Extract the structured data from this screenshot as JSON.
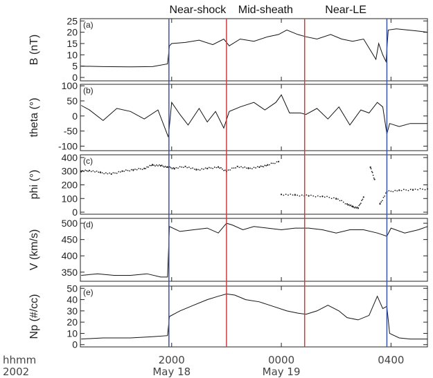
{
  "chart_data": {
    "type": "line",
    "time_axis": {
      "range_hours": [
        16.67,
        29.33
      ],
      "ticks": [
        {
          "t": 20,
          "label": "2000",
          "date": "May 18"
        },
        {
          "t": 24,
          "label": "0000",
          "date": "May 19"
        },
        {
          "t": 28,
          "label": "0400",
          "date": ""
        }
      ],
      "row_labels": [
        "hhmm",
        "2002"
      ]
    },
    "regions": [
      "Near-shock",
      "Mid-sheath",
      "Near-LE"
    ],
    "boundaries": [
      {
        "t": 19.9,
        "color": "#3a54a8"
      },
      {
        "t": 22.0,
        "color": "#d23a3a"
      },
      {
        "t": 24.85,
        "color": "#d23a3a"
      },
      {
        "t": 27.85,
        "color": "#3a54a8"
      }
    ],
    "panels": [
      {
        "tag": "(a)",
        "ylabel": "B (nT)",
        "ylim": [
          -1.5,
          26
        ],
        "yticks": [
          0,
          5,
          10,
          15,
          20,
          25
        ],
        "style": "line",
        "x": [
          16.7,
          17.5,
          18.5,
          19.3,
          19.85,
          19.92,
          20.0,
          20.5,
          21.0,
          21.5,
          21.9,
          22.1,
          22.5,
          23.0,
          23.5,
          23.9,
          24.2,
          24.6,
          24.9,
          25.3,
          25.8,
          26.2,
          26.6,
          27.0,
          27.2,
          27.45,
          27.55,
          27.7,
          27.82,
          27.9,
          28.2,
          28.6,
          29.0,
          29.33
        ],
        "y": [
          5,
          4.8,
          4.7,
          4.8,
          6,
          14,
          15,
          15.5,
          16.5,
          14.5,
          17,
          14,
          17,
          16,
          18,
          19,
          21,
          19,
          18,
          17,
          19,
          17,
          16,
          17,
          13,
          8,
          15,
          10,
          7,
          21,
          21.5,
          21,
          20.5,
          20
        ]
      },
      {
        "tag": "(b)",
        "ylabel": "theta (°)",
        "ylim": [
          -115,
          105
        ],
        "yticks": [
          -100,
          -50,
          0,
          50,
          100
        ],
        "style": "line",
        "x": [
          16.7,
          17.0,
          17.5,
          18.0,
          18.5,
          19.0,
          19.5,
          19.88,
          20.0,
          20.3,
          20.6,
          21.0,
          21.3,
          21.6,
          21.9,
          22.1,
          22.5,
          23.0,
          23.4,
          23.8,
          24.0,
          24.3,
          24.7,
          24.9,
          25.3,
          25.7,
          26.1,
          26.5,
          26.9,
          27.2,
          27.5,
          27.7,
          27.85,
          27.95,
          28.3,
          28.7,
          29.0,
          29.33
        ],
        "y": [
          35,
          20,
          -15,
          25,
          15,
          -10,
          20,
          -70,
          45,
          5,
          -30,
          25,
          -20,
          15,
          -40,
          15,
          30,
          45,
          20,
          45,
          70,
          10,
          10,
          5,
          25,
          -10,
          30,
          -30,
          20,
          10,
          45,
          30,
          -60,
          -25,
          -35,
          -25,
          -25,
          -25
        ]
      },
      {
        "tag": "(c)",
        "ylabel": "phi (°)",
        "ylim": [
          -15,
          420
        ],
        "yticks": [
          0,
          100,
          200,
          300,
          400
        ],
        "style": "dots",
        "x": [
          16.7,
          17.0,
          17.4,
          17.8,
          18.2,
          18.6,
          19.0,
          19.3,
          19.6,
          19.85,
          20.1,
          20.5,
          20.9,
          21.3,
          21.7,
          22.0,
          22.4,
          22.8,
          23.2,
          23.5,
          23.9,
          24.0,
          24.5,
          25.0,
          25.5,
          26.0,
          26.4,
          26.6,
          26.8,
          27.0,
          27.25,
          27.4,
          27.6,
          27.85,
          28.3,
          28.8,
          29.33
        ],
        "y": [
          300,
          305,
          290,
          280,
          300,
          310,
          320,
          345,
          340,
          330,
          320,
          335,
          310,
          320,
          330,
          300,
          335,
          320,
          330,
          345,
          370,
          130,
          125,
          120,
          115,
          100,
          60,
          40,
          30,
          110,
          330,
          240,
          60,
          150,
          160,
          165,
          170
        ]
      },
      {
        "tag": "(d)",
        "ylabel": "V (km/s)",
        "ylim": [
          322,
          515
        ],
        "yticks": [
          350,
          400,
          450,
          500
        ],
        "style": "line",
        "x": [
          16.7,
          17.3,
          17.9,
          18.5,
          19.1,
          19.6,
          19.85,
          19.92,
          20.3,
          20.8,
          21.3,
          21.7,
          22.0,
          22.2,
          22.6,
          23.0,
          23.5,
          24.0,
          24.5,
          25.0,
          25.5,
          26.0,
          26.5,
          27.0,
          27.5,
          27.85,
          28.0,
          28.5,
          29.0,
          29.33
        ],
        "y": [
          340,
          345,
          340,
          340,
          345,
          335,
          335,
          490,
          475,
          480,
          485,
          470,
          500,
          495,
          480,
          490,
          485,
          480,
          485,
          485,
          480,
          470,
          480,
          480,
          470,
          460,
          485,
          470,
          480,
          490
        ]
      },
      {
        "tag": "(e)",
        "ylabel": "Np (#/cc)",
        "ylim": [
          -2,
          52
        ],
        "yticks": [
          0,
          10,
          20,
          30,
          40,
          50
        ],
        "style": "line",
        "x": [
          16.7,
          17.5,
          18.5,
          19.3,
          19.85,
          19.92,
          20.3,
          20.8,
          21.3,
          21.7,
          22.0,
          22.3,
          22.7,
          23.2,
          23.7,
          24.2,
          24.6,
          24.9,
          25.3,
          25.7,
          26.1,
          26.4,
          26.8,
          27.2,
          27.5,
          27.7,
          27.85,
          27.95,
          28.3,
          28.7,
          29.0,
          29.33
        ],
        "y": [
          5,
          6,
          6,
          7,
          8,
          25,
          30,
          35,
          40,
          43,
          45,
          44,
          40,
          38,
          34,
          30,
          28,
          27,
          30,
          35,
          30,
          24,
          22,
          26,
          43,
          32,
          34,
          10,
          6,
          5,
          5,
          5
        ]
      }
    ]
  }
}
